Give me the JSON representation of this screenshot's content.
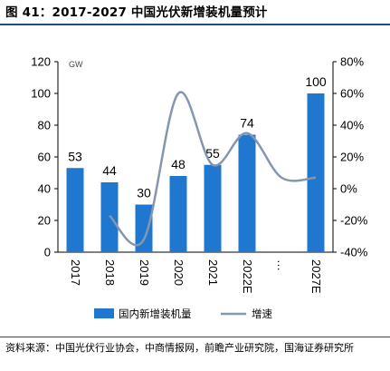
{
  "figure": {
    "title": "图 41：2017-2027 中国光伏新增装机量预计",
    "source": "资料来源：中国光伏行业协会，中商情报网，前瞻产业研究院，国海证券研究所"
  },
  "chart_data": {
    "type": "bar",
    "categories": [
      "2017",
      "2018",
      "2019",
      "2020",
      "2021",
      "2022E",
      "…",
      "2027E"
    ],
    "series": [
      {
        "name": "国内新增装机量",
        "type": "bar",
        "axis": "left",
        "values": [
          53,
          44,
          30,
          48,
          55,
          74,
          null,
          100
        ],
        "labels": [
          "53",
          "44",
          "30",
          "48",
          "55",
          "74",
          "",
          "100"
        ]
      },
      {
        "name": "增速",
        "type": "line",
        "axis": "right",
        "values": [
          null,
          -17,
          -32,
          60,
          15,
          35,
          7,
          7
        ]
      }
    ],
    "y_left": {
      "unit": "GW",
      "ylim": [
        0,
        120
      ],
      "ticks": [
        0,
        20,
        40,
        60,
        80,
        100,
        120
      ]
    },
    "y_right": {
      "ylim": [
        -40,
        80
      ],
      "ticks": [
        "-40%",
        "-20%",
        "0%",
        "20%",
        "40%",
        "60%",
        "80%"
      ],
      "tick_values": [
        -40,
        -20,
        0,
        20,
        40,
        60,
        80
      ]
    },
    "colors": {
      "bar": "#1f77d0",
      "line": "#8496b0"
    },
    "legend_position": "bottom",
    "grid": false
  }
}
